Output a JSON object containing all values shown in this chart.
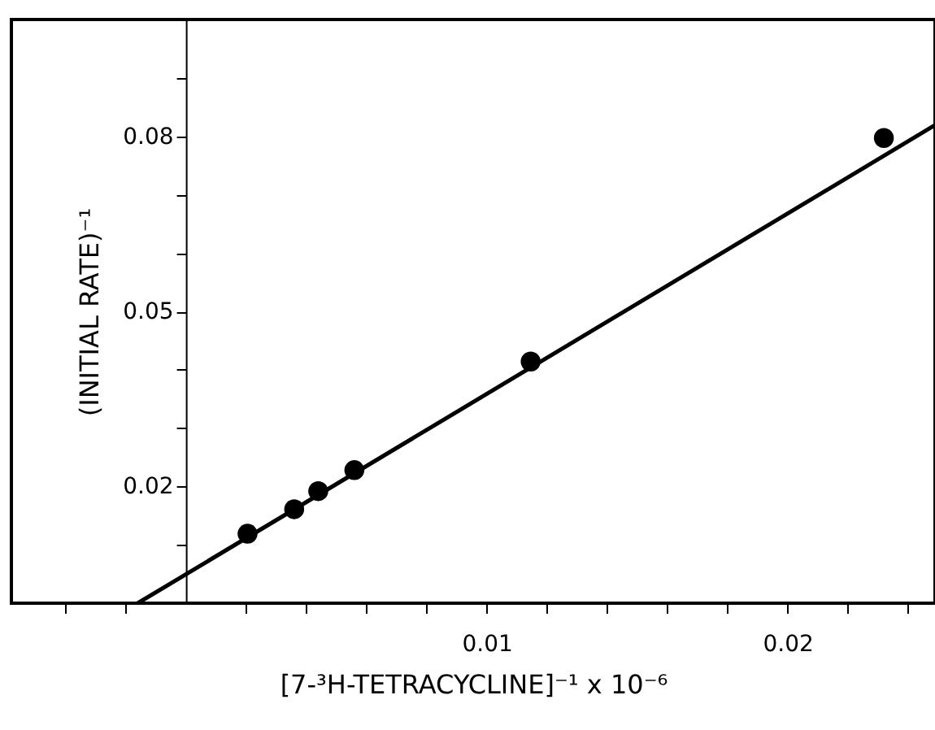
{
  "chart_data": {
    "type": "scatter",
    "xlabel": "[7-³H-TETRACYCLINE]⁻¹ x 10⁻⁶",
    "ylabel": "(INITIAL RATE)⁻¹",
    "xlim": [
      -0.0058,
      0.0249
    ],
    "ylim": [
      0,
      0.1
    ],
    "xticks": [
      {
        "value": -0.004,
        "label": null
      },
      {
        "value": -0.002,
        "label": null
      },
      {
        "value": 0.002,
        "label": null
      },
      {
        "value": 0.004,
        "label": null
      },
      {
        "value": 0.006,
        "label": null
      },
      {
        "value": 0.008,
        "label": null
      },
      0.01,
      {
        "value": 0.012,
        "label": null
      },
      {
        "value": 0.014,
        "label": null
      },
      {
        "value": 0.016,
        "label": null
      },
      {
        "value": 0.018,
        "label": null
      },
      0.02,
      {
        "value": 0.022,
        "label": null
      },
      {
        "value": 0.024,
        "label": null
      }
    ],
    "yticks": [
      {
        "value": 0.01,
        "label": null
      },
      0.02,
      {
        "value": 0.03,
        "label": null
      },
      {
        "value": 0.04,
        "label": null
      },
      0.05,
      {
        "value": 0.06,
        "label": null
      },
      {
        "value": 0.07,
        "label": null
      },
      0.08,
      {
        "value": 0.09,
        "label": null
      }
    ],
    "grid": false,
    "marker": "circle",
    "series": [
      {
        "color": "#000000",
        "x": [
          0.00205,
          0.0036,
          0.0044,
          0.0056,
          0.01146,
          0.0232
        ],
        "values": [
          0.0119,
          0.0161,
          0.0192,
          0.0228,
          0.0414,
          0.0797
        ]
      },
      {
        "type": "line",
        "color": "#000000",
        "line_style": "solid",
        "marker": "none",
        "x": [
          -0.0016,
          0.0249
        ],
        "values": [
          0,
          0.0819
        ]
      }
    ]
  }
}
